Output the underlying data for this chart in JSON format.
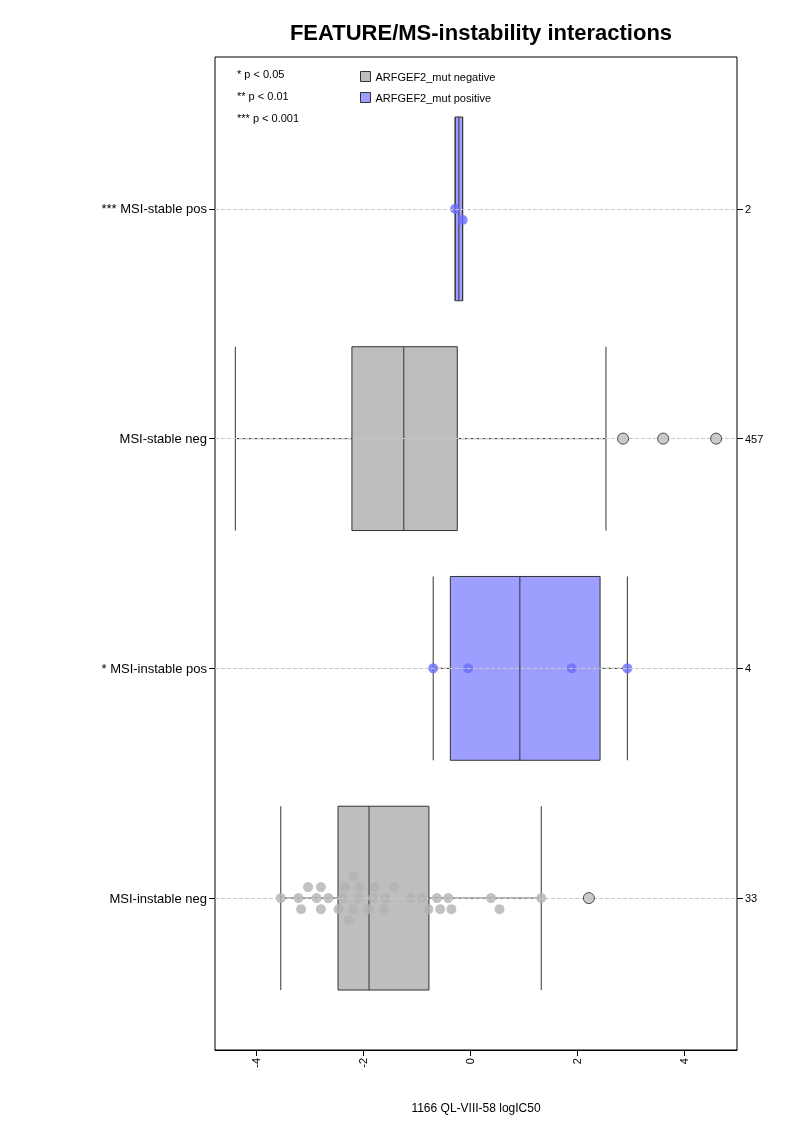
{
  "chart_data": {
    "type": "box",
    "orientation": "horizontal",
    "title": "FEATURE/MS-instability interactions",
    "xlabel": "1166 QL-VIII-58 logIC50",
    "categories": [
      "*** MSI-stable pos",
      "MSI-stable neg",
      "* MSI-instable pos",
      "MSI-instable neg"
    ],
    "y2_categories": [
      "2",
      "457",
      "4",
      "33"
    ],
    "xlim": [
      -4.77,
      4.99
    ],
    "xticks": [
      -4,
      -2,
      0,
      2,
      4
    ],
    "grid": "y",
    "legend": "top left",
    "annotations": [
      "* p < 0.05",
      "** p < 0.01",
      "*** p < 0.001"
    ],
    "series": [
      {
        "name": "ARFGEF2_mut negative",
        "color": "#bebebe",
        "boxes": [
          null,
          {
            "low": -4.39,
            "q1": -2.21,
            "median": -1.24,
            "q3": -0.24,
            "high": 2.54,
            "outliers": [
              2.86,
              3.61,
              4.6
            ]
          },
          null,
          {
            "low": -3.54,
            "q1": -2.47,
            "median": -1.89,
            "q3": -0.77,
            "high": 1.33,
            "outliers": [
              2.22
            ]
          }
        ]
      },
      {
        "name": "ARFGEF2_mut positive",
        "color": "#9e9eff",
        "boxes": [
          {
            "low": -0.28,
            "q1": -0.28,
            "median": -0.21,
            "q3": -0.14,
            "high": -0.14
          },
          null,
          {
            "low": -0.69,
            "q1": -0.37,
            "median": 0.93,
            "q3": 2.43,
            "high": 2.94
          },
          null
        ]
      },
      {
        "type": "scatter",
        "color": "#b3b3b3",
        "x": [
          "MSI-instable neg",
          "MSI-instable neg",
          "MSI-instable neg",
          "MSI-instable neg",
          "MSI-instable neg",
          "MSI-instable neg",
          "MSI-instable neg",
          "MSI-instable neg",
          "MSI-instable neg",
          "MSI-instable neg",
          "MSI-instable neg",
          "MSI-instable neg",
          "MSI-instable neg",
          "MSI-instable neg",
          "MSI-instable neg",
          "MSI-instable neg",
          "MSI-instable neg",
          "MSI-instable neg",
          "MSI-instable neg",
          "MSI-instable neg",
          "MSI-instable neg",
          "MSI-instable neg",
          "MSI-instable neg",
          "MSI-instable neg",
          "MSI-instable neg",
          "MSI-instable neg",
          "MSI-instable neg",
          "MSI-instable neg",
          "MSI-instable neg",
          "MSI-instable neg",
          "MSI-instable neg",
          "MSI-instable neg"
        ],
        "values": [
          -3.54,
          -3.21,
          -3.16,
          -3.03,
          -2.87,
          -2.79,
          -2.79,
          -2.65,
          -2.46,
          -2.38,
          -2.34,
          -2.27,
          -2.19,
          -2.18,
          -2.09,
          -2.06,
          -1.9,
          -1.81,
          -1.78,
          -1.61,
          -1.58,
          -1.42,
          -1.11,
          -0.9,
          -0.78,
          -0.62,
          -0.56,
          -0.41,
          -0.35,
          0.39,
          0.55,
          1.33
        ]
      },
      {
        "type": "scatter",
        "color": "#6b6bff",
        "x": [
          "*** MSI-stable pos",
          "*** MSI-stable pos",
          "* MSI-instable pos",
          "* MSI-instable pos",
          "* MSI-instable pos",
          "* MSI-instable pos"
        ],
        "values": [
          -0.28,
          -0.14,
          -0.69,
          -0.04,
          1.9,
          2.94
        ]
      }
    ]
  }
}
